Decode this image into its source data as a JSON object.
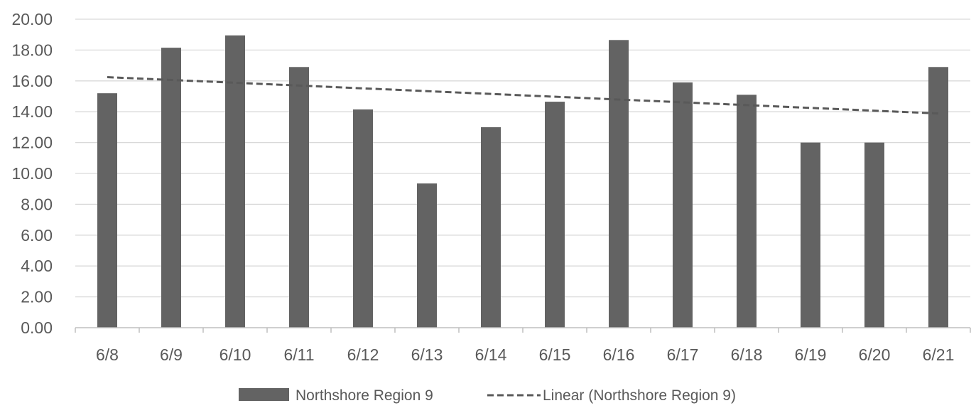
{
  "chart_data": {
    "type": "bar",
    "categories": [
      "6/8",
      "6/9",
      "6/10",
      "6/11",
      "6/12",
      "6/13",
      "6/14",
      "6/15",
      "6/16",
      "6/17",
      "6/18",
      "6/19",
      "6/20",
      "6/21"
    ],
    "series": [
      {
        "name": "Northshore Region 9",
        "values": [
          15.2,
          18.15,
          18.95,
          16.9,
          14.15,
          9.35,
          13.0,
          14.65,
          18.65,
          15.9,
          15.1,
          12.0,
          12.0,
          16.9
        ],
        "color": "#636363"
      }
    ],
    "trendline": {
      "name": "Linear (Northshore Region 9)",
      "type": "linear",
      "color": "#595959"
    },
    "ylim": [
      0,
      20
    ],
    "y_ticks": [
      "0.00",
      "2.00",
      "4.00",
      "6.00",
      "8.00",
      "10.00",
      "12.00",
      "14.00",
      "16.00",
      "18.00",
      "20.00"
    ],
    "grid": true,
    "legend_position": "bottom",
    "title": "",
    "xlabel": "",
    "ylabel": ""
  },
  "colors": {
    "bar": "#636363",
    "trend": "#595959",
    "grid": "#d9d9d9",
    "axis": "#bfbfbf",
    "text": "#595959"
  }
}
